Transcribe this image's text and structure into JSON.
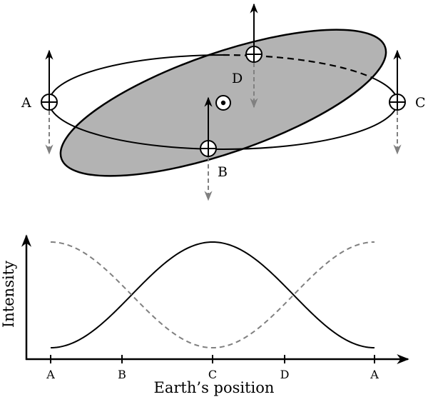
{
  "diagram": {
    "point_labels": {
      "A": "A",
      "B": "B",
      "C": "C",
      "D": "D"
    }
  },
  "graph": {
    "ylabel": "Intensity",
    "xlabel": "Earth’s position",
    "ticks": [
      "A",
      "B",
      "C",
      "D",
      "A"
    ]
  },
  "colors": {
    "stroke": "#000000",
    "shaded_ellipse_fill": "#b3b3b3",
    "dashed_gray": "#808080"
  }
}
